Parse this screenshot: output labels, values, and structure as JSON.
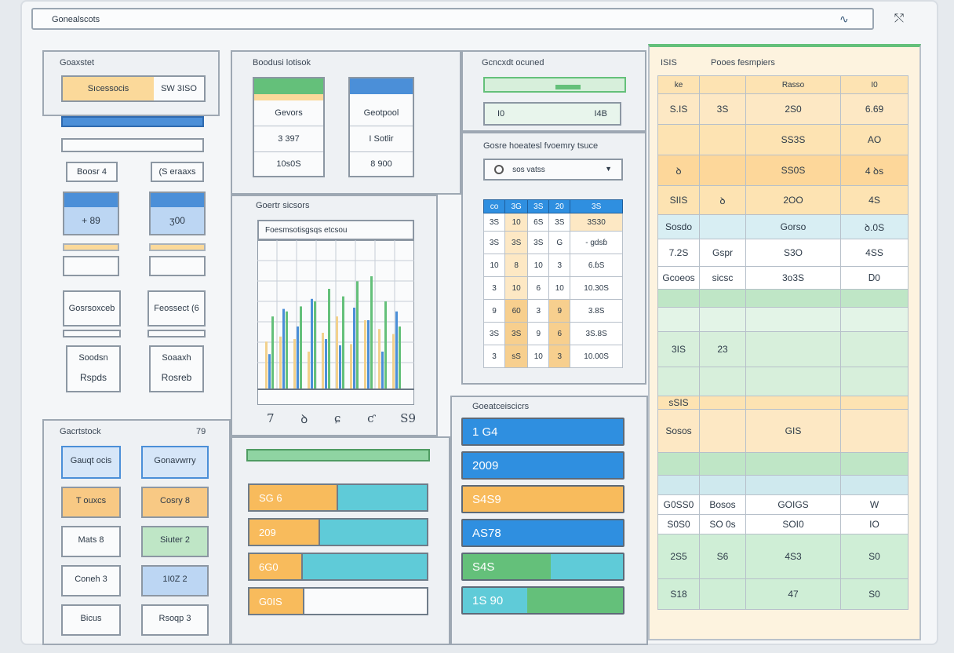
{
  "titlebar": {
    "title": "Gonealscots",
    "icon_colors": {
      "accent": "#4b8fd8",
      "green": "#64c07a",
      "orange": "#f7b24e",
      "teal": "#58c3d3"
    }
  },
  "left": {
    "panel_title": "Goaxstet",
    "top_field": {
      "label": "Sıcessocis",
      "value": "SW 3ISO"
    },
    "steppers": [
      {
        "label": "Boosr",
        "value": "4"
      },
      {
        "label": "(S",
        "value": "eraaxs"
      }
    ],
    "value_boxes": [
      "+ 89",
      "ʒ00"
    ],
    "buttons": [
      "Gosrsoxceb",
      "Feossect (6"
    ],
    "cards": [
      {
        "top": "Soodsn",
        "bottom": "Rspds"
      },
      {
        "top": "Soaaxh",
        "bottom": "Rosreb"
      }
    ]
  },
  "bottom_left": {
    "title": "Gacrtstock",
    "count": "79",
    "items": [
      [
        "Gauqt ocis",
        "Gonavwrry"
      ],
      [
        "T ouxcs",
        "Cosry    8"
      ],
      [
        "Mats 8",
        "Siuter   2"
      ],
      [
        "Coneh 3",
        "1I0Z  2"
      ],
      [
        "Bicus",
        "Rsoqp   3"
      ]
    ]
  },
  "middle_top": {
    "title": "Boodusi lotisok",
    "left_col": [
      "Gevors",
      "3 397",
      "10s0S"
    ],
    "right_col": [
      "Geotpool",
      "I Sotlir",
      "8 900"
    ]
  },
  "chart_panel": {
    "title": "Goertr sicsors",
    "inner_title": "Foesmsotisgsqs etcsou",
    "tick_labels": [
      "7",
      "ꝺ",
      "ɕ",
      "ƈ",
      "S9"
    ]
  },
  "chart_data": {
    "type": "bar",
    "title": "Foesmsotisgsqs etcsou",
    "xlabel": "",
    "ylabel": "",
    "tick_labels": [
      "7",
      "ꝺ",
      "ɕ",
      "ƈ",
      "S9"
    ],
    "series": [
      {
        "color": "#f2d18c",
        "values": [
          38,
          42,
          40,
          30,
          45,
          58,
          36,
          55,
          48,
          44
        ]
      },
      {
        "color": "#4b8fd8",
        "values": [
          28,
          64,
          50,
          72,
          40,
          35,
          65,
          55,
          30,
          62
        ]
      },
      {
        "color": "#64c07a",
        "values": [
          58,
          62,
          66,
          70,
          80,
          74,
          86,
          90,
          70,
          50
        ]
      }
    ],
    "ylim": [
      0,
      100
    ],
    "grid": true
  },
  "mini_panel": {
    "title": "Gcncxdt ocuned",
    "value": "I0",
    "sub": "I4B"
  },
  "data_panel": {
    "title": "Gosre hoeatesl fvoemry tsuce",
    "dropdown": "sos vatss",
    "header": [
      "co",
      "3G",
      "3S",
      "20",
      "3S"
    ],
    "rows": [
      [
        "3S",
        "10",
        "6S",
        "3S",
        "3S30"
      ],
      [
        "3S",
        "3S",
        "3S",
        "G",
        "- gdsɓ"
      ],
      [
        "10",
        "8",
        "10",
        "3",
        "6.ɓS"
      ],
      [
        "3",
        "10",
        "6",
        "10",
        "10.30S"
      ],
      [
        "9",
        "60",
        "3",
        "9",
        "3.8S"
      ],
      [
        "3S",
        "3S",
        "9",
        "6",
        "3S.8S"
      ],
      [
        "3",
        "sS",
        "10",
        "3",
        "10.00S"
      ]
    ]
  },
  "progress_panel": {
    "bar_top": 1.0,
    "bars": [
      {
        "label": "SG 6",
        "fill": 0.49,
        "color": "orange"
      },
      {
        "label": "209",
        "fill": 0.39,
        "color": "orange"
      },
      {
        "label": "6G0",
        "fill": 0.29,
        "color": "orange"
      },
      {
        "label": "G0IS",
        "fill": 0.3,
        "color": "orange"
      }
    ]
  },
  "blue_panel": {
    "title": "Goeatceiscicrs",
    "bars": [
      {
        "label": "1 G4",
        "fill": 1.0,
        "color": "blue"
      },
      {
        "label": "2009",
        "fill": 1.0,
        "color": "blue"
      },
      {
        "label": "S4S9",
        "fill": 1.0,
        "color": "orange"
      },
      {
        "label": "AS78",
        "fill": 1.0,
        "color": "blue"
      },
      {
        "label": "S4S",
        "fill": 0.55,
        "color": "green"
      },
      {
        "label": "1S 90",
        "fill": 0.4,
        "color": "teal"
      }
    ]
  },
  "right_panel": {
    "title_left": "ISIS",
    "title_right": "Pooes fesmpiers",
    "top_header": [
      "ke",
      "Rasso",
      "I0"
    ],
    "rows": [
      [
        "S.IS",
        "3S",
        "2S0",
        "6.69"
      ],
      [
        "",
        "",
        "SS3S",
        "AO"
      ],
      [
        "ꝺ",
        "",
        "SS0S",
        "4 ꝺs"
      ],
      [
        "SIIS",
        "ꝺ",
        "2OO",
        "4S"
      ],
      [
        "Sosdo",
        "",
        "Gorso",
        "ꝺ.0S"
      ],
      [
        "7.2S",
        "Gspr",
        "S3O",
        "4SS"
      ],
      [
        "Gcoeos",
        "sicsc",
        "3o3S",
        "Ꭰ0"
      ],
      [
        "",
        "",
        "",
        ""
      ],
      [
        "",
        "",
        "",
        ""
      ],
      [
        "3IS",
        "23",
        "",
        ""
      ],
      [
        "",
        "",
        "",
        ""
      ],
      [
        "sSIS",
        "",
        "",
        ""
      ],
      [
        "Sosos",
        "",
        "GIS",
        ""
      ],
      [
        "",
        "",
        "",
        ""
      ],
      [
        "",
        "",
        "",
        ""
      ],
      [
        "G0SS0",
        "Bosos",
        "GOIGS",
        "W"
      ],
      [
        "S0S0",
        "SO 0s",
        "SOI0",
        "IO"
      ],
      [
        "2S5",
        "S6",
        "4S3",
        "S0"
      ],
      [
        "S18",
        "",
        "47",
        "S0"
      ]
    ]
  }
}
